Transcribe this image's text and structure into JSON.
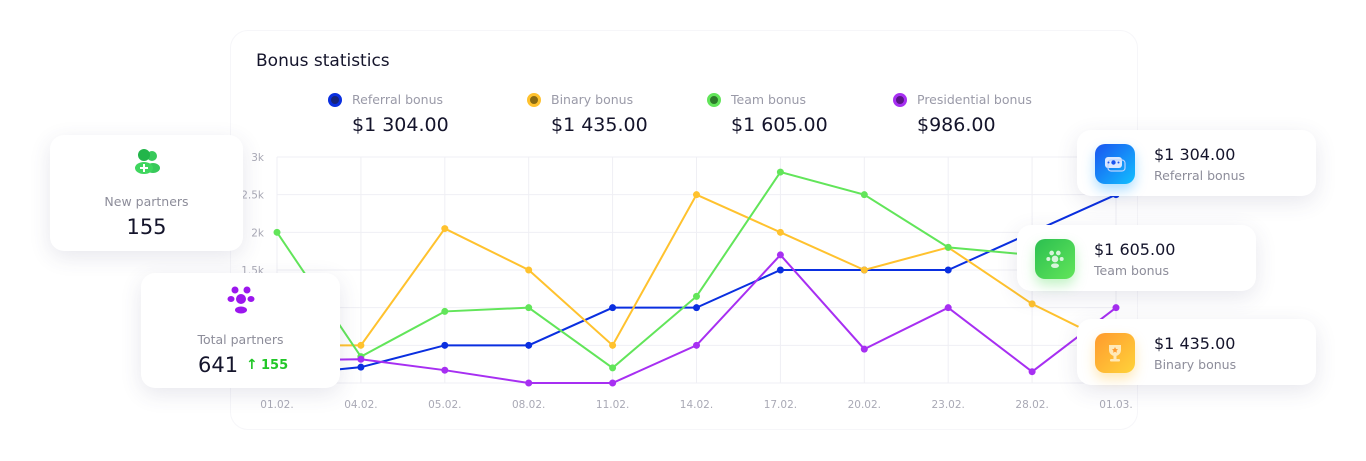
{
  "title": "Bonus statistics",
  "legend": [
    {
      "label": "Referral bonus",
      "amount": "$1 304.00",
      "color": "#0a2fe0"
    },
    {
      "label": "Binary bonus",
      "amount": "$1 435.00",
      "color": "#ffc22e"
    },
    {
      "label": "Team bonus",
      "amount": "$1 605.00",
      "color": "#62e55a"
    },
    {
      "label": "Presidential bonus",
      "amount": "$986.00",
      "color": "#a72ff2"
    }
  ],
  "new_partners": {
    "label": "New partners",
    "value": "155",
    "icon": "users-plus-icon"
  },
  "total_partners": {
    "label": "Total partners",
    "value": "641",
    "change": "155",
    "change_icon": "arrow-up-icon",
    "icon": "team-icon"
  },
  "bonus_cards": [
    {
      "amount": "$1 304.00",
      "label": "Referral bonus",
      "icon": "money-icon"
    },
    {
      "amount": "$1 605.00",
      "label": "Team bonus",
      "icon": "team-icon"
    },
    {
      "amount": "$1 435.00",
      "label": "Binary bonus",
      "icon": "trophy-icon"
    }
  ],
  "chart_data": {
    "type": "line",
    "categories": [
      "01.02.",
      "04.02.",
      "05.02.",
      "08.02.",
      "11.02.",
      "14.02.",
      "17.02.",
      "20.02.",
      "23.02.",
      "28.02.",
      "01.03."
    ],
    "y_ticks": [
      "3k",
      "2.5k",
      "2k",
      "1.5k"
    ],
    "ylim": [
      0,
      3000
    ],
    "grid": true,
    "series": [
      {
        "name": "Referral bonus",
        "color": "#0a2fe0",
        "values": [
          100,
          210,
          500,
          500,
          1000,
          1000,
          1500,
          1500,
          1500,
          2000,
          2500
        ]
      },
      {
        "name": "Binary bonus",
        "color": "#ffc22e",
        "values": [
          500,
          500,
          2050,
          1500,
          500,
          2500,
          2000,
          1500,
          1800,
          1050,
          500
        ]
      },
      {
        "name": "Team bonus",
        "color": "#62e55a",
        "values": [
          2000,
          350,
          950,
          1000,
          200,
          1150,
          2800,
          2500,
          1800,
          1700,
          1600
        ]
      },
      {
        "name": "Presidential bonus",
        "color": "#a72ff2",
        "values": [
          300,
          315,
          170,
          0,
          0,
          500,
          1700,
          450,
          1000,
          150,
          1000
        ]
      }
    ]
  }
}
